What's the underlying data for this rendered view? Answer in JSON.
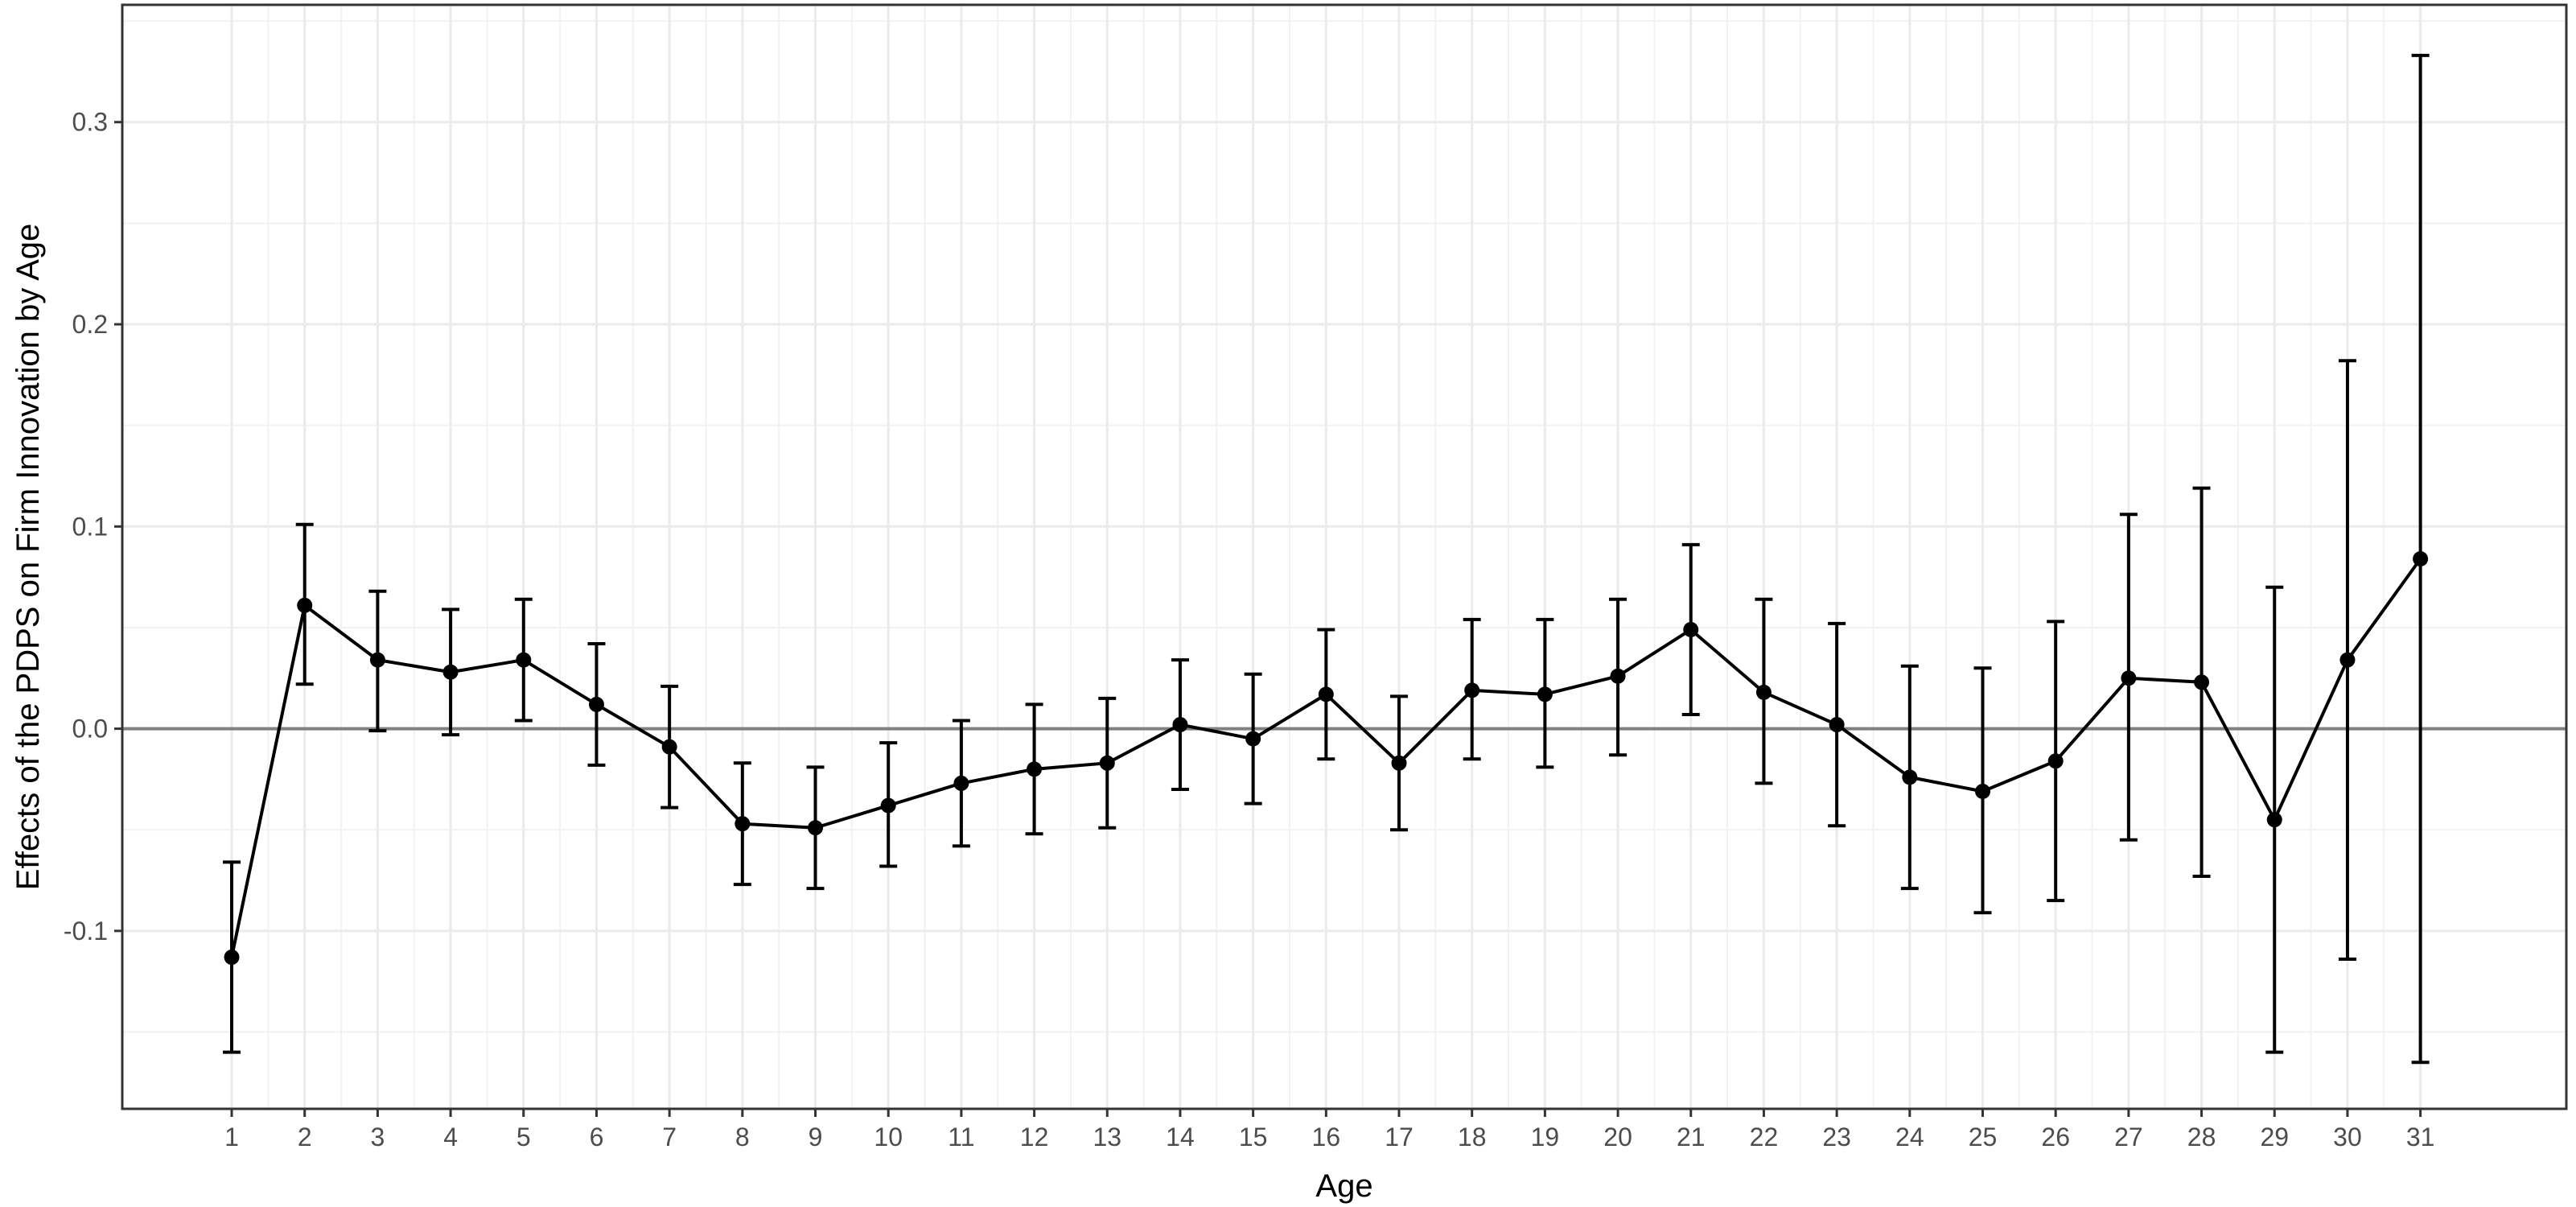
{
  "chart_data": {
    "type": "line",
    "title": "",
    "xlabel": "Age",
    "ylabel": "Effects of the PDPS on Firm Innovation by Age",
    "x": [
      1,
      2,
      3,
      4,
      5,
      6,
      7,
      8,
      9,
      10,
      11,
      12,
      13,
      14,
      15,
      16,
      17,
      18,
      19,
      20,
      21,
      22,
      23,
      24,
      25,
      26,
      27,
      28,
      29,
      30,
      31
    ],
    "series": [
      {
        "values": [
          -0.113,
          0.061,
          0.034,
          0.028,
          0.034,
          0.012,
          -0.009,
          -0.047,
          -0.049,
          -0.038,
          -0.027,
          -0.02,
          -0.017,
          0.002,
          -0.005,
          0.017,
          -0.017,
          0.019,
          0.017,
          0.026,
          0.049,
          0.018,
          0.002,
          -0.024,
          -0.031,
          -0.016,
          0.025,
          0.023,
          -0.045,
          0.034,
          0.084
        ],
        "lower": [
          -0.16,
          0.022,
          -0.001,
          -0.003,
          0.004,
          -0.018,
          -0.039,
          -0.077,
          -0.079,
          -0.068,
          -0.058,
          -0.052,
          -0.049,
          -0.03,
          -0.037,
          -0.015,
          -0.05,
          -0.015,
          -0.019,
          -0.013,
          0.007,
          -0.027,
          -0.048,
          -0.079,
          -0.091,
          -0.085,
          -0.055,
          -0.073,
          -0.16,
          -0.114,
          -0.165
        ],
        "upper": [
          -0.066,
          0.101,
          0.068,
          0.059,
          0.064,
          0.042,
          0.021,
          -0.017,
          -0.019,
          -0.007,
          0.004,
          0.012,
          0.015,
          0.034,
          0.027,
          0.049,
          0.016,
          0.054,
          0.054,
          0.064,
          0.091,
          0.064,
          0.052,
          0.031,
          0.03,
          0.053,
          0.106,
          0.119,
          0.07,
          0.182,
          0.333
        ]
      }
    ],
    "xlim": [
      -0.5,
      33
    ],
    "ylim": [
      -0.188,
      0.358
    ],
    "yticks": [
      -0.1,
      0.0,
      0.1,
      0.2,
      0.3
    ],
    "ytick_labels": [
      "-0.1",
      "0.0",
      "0.1",
      "0.2",
      "0.3"
    ],
    "reference_line": 0,
    "grid": true,
    "colors": {
      "line": "#000000",
      "grid_major": "#ebebeb",
      "grid_minor": "#f2f2f2",
      "reference": "#808080",
      "panel_border": "#333333",
      "tick_text": "#4d4d4d"
    }
  }
}
